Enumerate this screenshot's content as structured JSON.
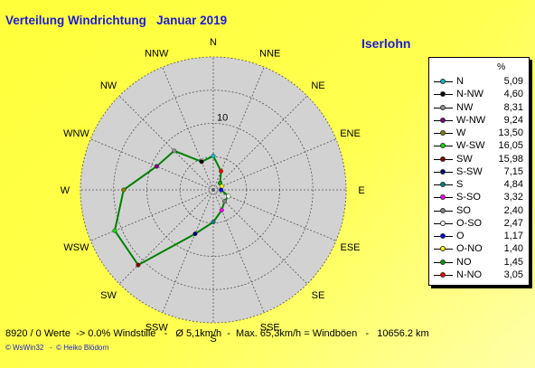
{
  "header": {
    "title": "Verteilung Windrichtung   Januar 2019",
    "station": "Iserlohn"
  },
  "legend": {
    "unit": "%"
  },
  "footer": {
    "stats": "8920 / 0 Werte  -> 0.0% Windstille   -   Ø 5,1km/h  -  Max. 65,3km/h = Windböen   -   10656.2 km",
    "credits": "© WsWin32   -  © Heiko Blödorn"
  },
  "chart_data": {
    "type": "radar",
    "title": "Verteilung Windrichtung   Januar 2019",
    "unit": "%",
    "radial_max": 20,
    "radial_ticks": [
      10
    ],
    "grid": true,
    "legend_position": "right",
    "line_color": "#008000",
    "directions": [
      "N",
      "NNE",
      "NE",
      "ENE",
      "E",
      "ESE",
      "SE",
      "SSE",
      "S",
      "SSW",
      "SW",
      "WSW",
      "W",
      "WNW",
      "NW",
      "NNW"
    ],
    "series": [
      {
        "label": "N",
        "value": "5,09",
        "color": "#00c0c0"
      },
      {
        "label": "N-NW",
        "value": "4,60",
        "color": "#000000"
      },
      {
        "label": "NW",
        "value": "8,31",
        "color": "#909090"
      },
      {
        "label": "W-NW",
        "value": "9,24",
        "color": "#800080"
      },
      {
        "label": "W",
        "value": "13,50",
        "color": "#808000"
      },
      {
        "label": "W-SW",
        "value": "16,05",
        "color": "#00e000"
      },
      {
        "label": "SW",
        "value": "15,98",
        "color": "#800000"
      },
      {
        "label": "S-SW",
        "value": "7,15",
        "color": "#000080"
      },
      {
        "label": "S",
        "value": "4,84",
        "color": "#008080"
      },
      {
        "label": "S-SO",
        "value": "3,32",
        "color": "#ff00ff"
      },
      {
        "label": "SO",
        "value": "2,40",
        "color": "#808080"
      },
      {
        "label": "O-SO",
        "value": "2,47",
        "color": "#ffffff"
      },
      {
        "label": "O",
        "value": "1,17",
        "color": "#0000ff"
      },
      {
        "label": "O-NO",
        "value": "1,40",
        "color": "#ffff00"
      },
      {
        "label": "NO",
        "value": "1,45",
        "color": "#00a000"
      },
      {
        "label": "N-NO",
        "value": "3,05",
        "color": "#ff0000"
      }
    ]
  }
}
